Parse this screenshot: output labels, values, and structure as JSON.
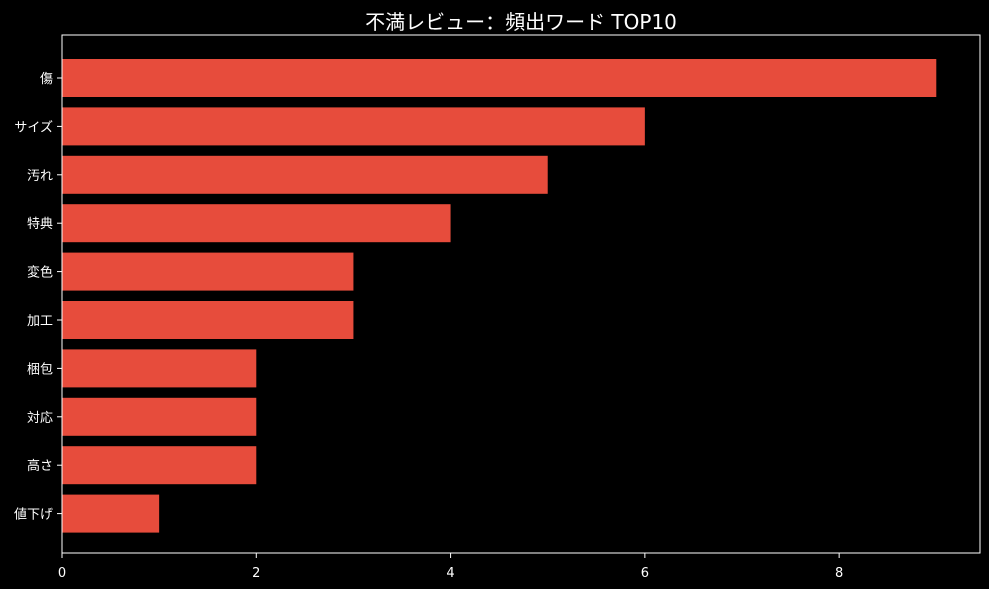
{
  "chart_data": {
    "type": "bar",
    "orientation": "horizontal",
    "title": "不満レビュー：頻出ワード TOP10",
    "xlabel": "",
    "ylabel": "",
    "categories": [
      "傷",
      "サイズ",
      "汚れ",
      "特典",
      "変色",
      "加工",
      "梱包",
      "対応",
      "高さ",
      "値下げ"
    ],
    "values": [
      9,
      6,
      5,
      4,
      3,
      3,
      2,
      2,
      2,
      1
    ],
    "xlim": [
      0,
      9.45
    ],
    "xticks": [
      0,
      2,
      4,
      6,
      8
    ],
    "grid": false,
    "bar_color": "#e74c3c",
    "background_color": "#000000",
    "text_color": "#ffffff"
  }
}
